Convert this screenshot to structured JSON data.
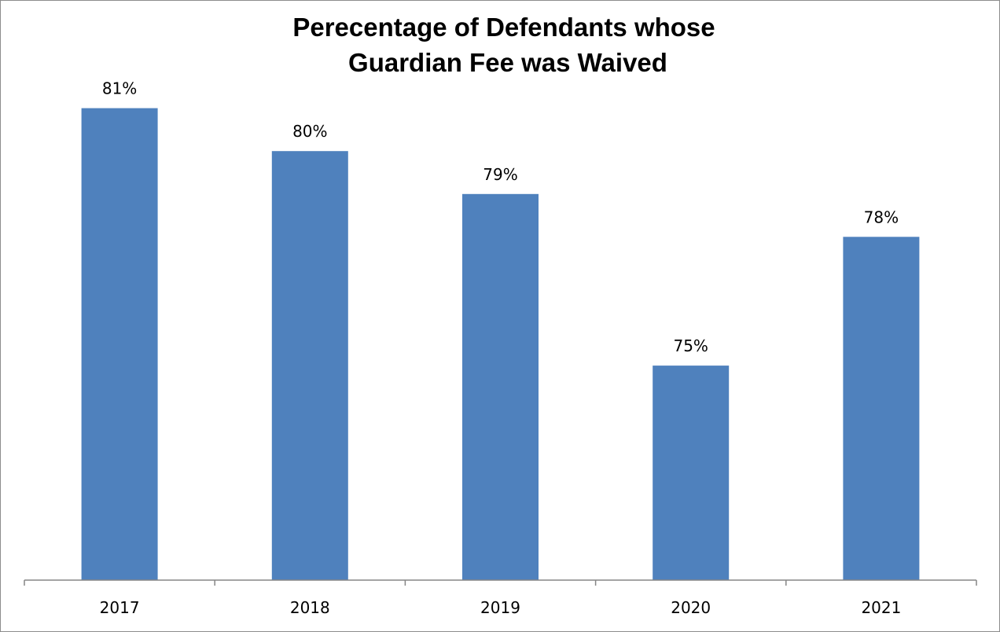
{
  "chart_data": {
    "type": "bar",
    "title": "Perecentage of Defendants whose Guardian Fee was Waived",
    "title_lines": [
      "Perecentage of Defendants whose",
      "Guardian Fee was Waived"
    ],
    "categories": [
      "2017",
      "2018",
      "2019",
      "2020",
      "2021"
    ],
    "values": [
      81,
      80,
      79,
      75,
      78
    ],
    "data_labels": [
      "81%",
      "80%",
      "79%",
      "75%",
      "78%"
    ],
    "xlabel": "",
    "ylabel": "",
    "ylim": [
      70,
      82
    ],
    "grid": false,
    "legend": "none",
    "bar_color": "#4F81BD"
  }
}
